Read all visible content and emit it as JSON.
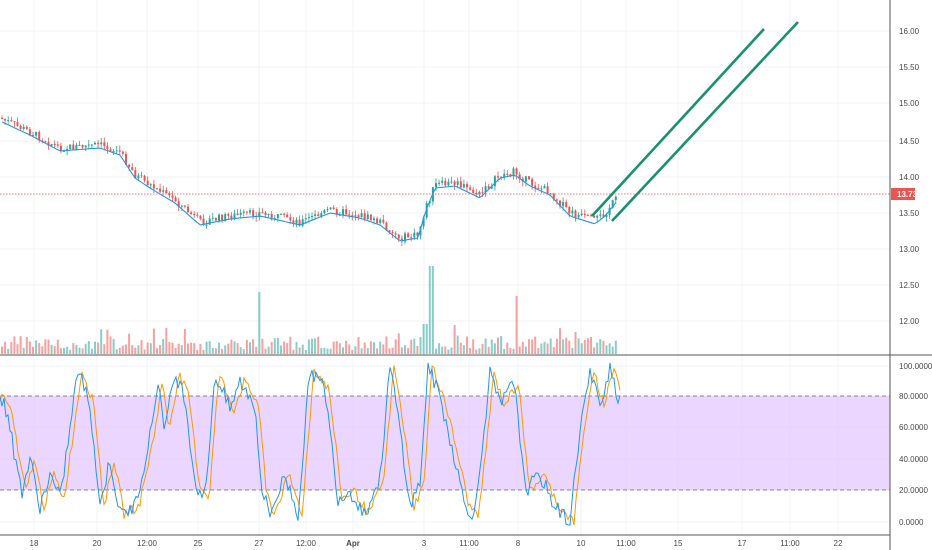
{
  "price_axis": {
    "labels": [
      "16.00",
      "15.50",
      "15.00",
      "14.50",
      "14.00",
      "13.50",
      "13.00",
      "12.50",
      "12.00"
    ],
    "current_price": "13.73"
  },
  "oscillator_axis": {
    "labels": [
      "100.0000",
      "80.0000",
      "60.0000",
      "40.0000",
      "20.0000",
      "0.0000"
    ],
    "upper_band": 80,
    "lower_band": 20
  },
  "time_axis": {
    "labels": [
      "18",
      "20",
      "12:00",
      "25",
      "27",
      "12:00",
      "Apr",
      "3",
      "11:00",
      "8",
      "10",
      "11:00",
      "15",
      "17",
      "11:00",
      "22"
    ]
  },
  "colors": {
    "up_candle": "#26a69a",
    "down_candle": "#ef5350",
    "ma_line": "#2196f3",
    "trend_lines": "#1a9070",
    "current_price_line": "#ef5350",
    "band_fill": "#e6c8ff",
    "stoch_k": "#2196f3",
    "stoch_d": "#ff9800"
  }
}
